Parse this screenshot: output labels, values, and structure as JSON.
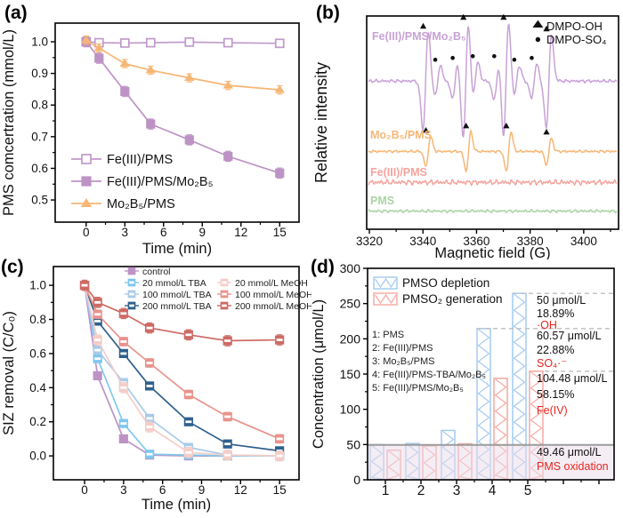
{
  "figure": {
    "panels": [
      {
        "letter": "(a)"
      },
      {
        "letter": "(b)"
      },
      {
        "letter": "(c)"
      },
      {
        "letter": "(d)"
      }
    ]
  },
  "chart_data": [
    {
      "id": "a",
      "type": "line",
      "title": "",
      "xlabel": "Time (min)",
      "ylabel": "PMS comcertration (mmol/L)",
      "x": [
        0,
        1,
        3,
        5,
        8,
        11,
        15
      ],
      "xticks": [
        0,
        3,
        6,
        9,
        12,
        15
      ],
      "yticks": [
        0.5,
        0.6,
        0.7,
        0.8,
        0.9,
        1.0
      ],
      "xlim": [
        -2.4,
        16.5
      ],
      "ylim": [
        0.43,
        1.059
      ],
      "legend_position": "lower-left",
      "series": [
        {
          "name": "Fe(III)/PMS",
          "color": "#c09aca",
          "marker": "square-open",
          "err": 0.012,
          "values": [
            1.0,
            0.997,
            0.996,
            0.997,
            0.999,
            0.997,
            0.995
          ]
        },
        {
          "name": "Fe(III)/PMS/Mo₂B₅",
          "color": "#bd93c5",
          "marker": "square-filled",
          "err": 0.016,
          "values": [
            1.0,
            0.948,
            0.843,
            0.74,
            0.69,
            0.638,
            0.585
          ]
        },
        {
          "name": "Mo₂B₅/PMS",
          "color": "#f6b675",
          "marker": "triangle-filled",
          "err": 0.013,
          "values": [
            1.005,
            0.98,
            0.931,
            0.91,
            0.886,
            0.862,
            0.848
          ]
        }
      ]
    },
    {
      "id": "b",
      "type": "epr",
      "title": "",
      "xlabel": "Magnetic field (G)",
      "ylabel": "Relative intensity",
      "xlim": [
        3319,
        3413
      ],
      "xticks": [
        3320,
        3340,
        3360,
        3380,
        3400
      ],
      "xminor": [
        3330,
        3350,
        3370,
        3390,
        3410
      ],
      "legend": [
        {
          "marker": "triangle",
          "label": "DMPO-OH"
        },
        {
          "marker": "dot",
          "label": "DMPO-SO₄"
        }
      ],
      "curves": [
        {
          "label": "Fe(III)/PMS/Mo₂B₅",
          "color": "#c8a2d6",
          "baseline_frac": 0.305,
          "noise": 1.7,
          "width": 1.0,
          "peaks": [
            [
              3341,
              55
            ],
            [
              3345.5,
              17
            ],
            [
              3352,
              19
            ],
            [
              3356,
              65
            ],
            [
              3359.5,
              21
            ],
            [
              3367.5,
              21
            ],
            [
              3371,
              65
            ],
            [
              3375,
              17
            ],
            [
              3381.5,
              19
            ],
            [
              3387,
              52
            ]
          ],
          "tri_markers": [
            3341,
            3356,
            3371,
            3387
          ],
          "dot_markers": [
            3345.5,
            3352,
            3359.5,
            3367.5,
            3375,
            3381.5
          ]
        },
        {
          "label": "Mo₂B₅/PMS",
          "color": "#f6b675",
          "baseline_frac": 0.635,
          "noise": 1.4,
          "width": 0.9,
          "peaks": [
            [
              3342,
              17
            ],
            [
              3357,
              22
            ],
            [
              3372,
              22
            ],
            [
              3387,
              15
            ]
          ],
          "tri_markers": [
            3342,
            3357,
            3372,
            3387
          ],
          "dot_markers": []
        },
        {
          "label": "Fe(III)/PMS",
          "color": "#f4a49e",
          "baseline_frac": 0.78,
          "noise": 2.8,
          "width": 1.2,
          "peaks": [],
          "tri_markers": [],
          "dot_markers": []
        },
        {
          "label": "PMS",
          "color": "#abd3a5",
          "baseline_frac": 0.915,
          "noise": 1.6,
          "width": 1.0,
          "peaks": [],
          "tri_markers": [],
          "dot_markers": []
        }
      ]
    },
    {
      "id": "c",
      "type": "line",
      "title": "",
      "xlabel": "Time (min)",
      "ylabel": "SIZ removal (C/C₀)",
      "x": [
        0,
        1,
        3,
        5,
        8,
        11,
        15
      ],
      "xticks": [
        0,
        3,
        6,
        9,
        12,
        15
      ],
      "yticks": [
        0.0,
        0.2,
        0.4,
        0.6,
        0.8,
        1.0
      ],
      "xlim": [
        -2.4,
        16.5
      ],
      "ylim": [
        -0.14,
        1.11
      ],
      "legend_position": "top",
      "legend_rows": [
        [
          0
        ],
        [
          1,
          4
        ],
        [
          2,
          5
        ],
        [
          3,
          6
        ]
      ],
      "series": [
        {
          "name": "control",
          "color": "#bd93c5",
          "marker": "square-filled",
          "err": 0.018,
          "values": [
            1.0,
            0.47,
            0.1,
            0.005,
            0.0,
            0.0,
            0.0
          ]
        },
        {
          "name": "20 mmol/L TBA",
          "color": "#7fc7ef",
          "marker": "square-half",
          "err": 0.02,
          "values": [
            1.0,
            0.57,
            0.19,
            0.01,
            0.005,
            0.0,
            0.0
          ]
        },
        {
          "name": "100 mmol/L TBA",
          "color": "#a8cbe9",
          "marker": "square-half",
          "err": 0.02,
          "values": [
            1.0,
            0.62,
            0.43,
            0.22,
            0.05,
            0.005,
            0.0
          ]
        },
        {
          "name": "200 mmol/L TBA",
          "color": "#2e608e",
          "marker": "square-half",
          "err": 0.022,
          "values": [
            1.0,
            0.79,
            0.6,
            0.41,
            0.2,
            0.07,
            0.03
          ]
        },
        {
          "name": "20 mmol/L MeOH",
          "color": "#f6cdc8",
          "marker": "square-half",
          "err": 0.03,
          "values": [
            1.0,
            0.68,
            0.4,
            0.17,
            0.02,
            0.005,
            0.0
          ]
        },
        {
          "name": "100 mmol/L MeOH",
          "color": "#e9938c",
          "marker": "square-half",
          "err": 0.025,
          "values": [
            1.0,
            0.83,
            0.67,
            0.545,
            0.36,
            0.23,
            0.1
          ]
        },
        {
          "name": "200 mmol/L MeOH",
          "color": "#ce6a63",
          "marker": "square-half",
          "err": 0.03,
          "values": [
            1.0,
            0.9,
            0.835,
            0.75,
            0.71,
            0.675,
            0.68
          ]
        }
      ]
    },
    {
      "id": "d",
      "type": "bar",
      "title": "",
      "xlabel": "",
      "ylabel": "Concentration (μmol/L)",
      "categories": [
        "1",
        "2",
        "3",
        "4",
        "5"
      ],
      "ylim": [
        0,
        300
      ],
      "yticks": [
        0,
        50,
        100,
        150,
        200,
        250,
        300
      ],
      "series": [
        {
          "name": "PMSO depletion",
          "color": "#a3cbf0",
          "values": [
            50,
            51.5,
            70,
            214.5,
            264.5
          ]
        },
        {
          "name": "PMSO₂ generation",
          "color": "#f4a8a1",
          "values": [
            42,
            48,
            51,
            144,
            154
          ]
        }
      ],
      "condition_list": [
        "1: PMS",
        "2: Fe(III)/PMS",
        "3: Mo₂B₅/PMS",
        "4: Fe(III)/PMS-TBA/Mo₂B₅",
        "5: Fe(III)/PMS/Mo₂B₅"
      ],
      "dashed_lines": [
        264.5,
        214.5,
        154
      ],
      "solid_line": 49.46,
      "band": [
        0,
        49.46
      ],
      "annotations": [
        {
          "value": "50 μmol/L",
          "percent": "18.89%",
          "species": "·OH"
        },
        {
          "value": "60.57 μmol/L",
          "percent": "22.88%",
          "species": "SO₄·⁻"
        },
        {
          "value": "104.48 μmol/L",
          "percent": "58.15%",
          "species": "Fe(IV)"
        },
        {
          "value": "49.46 μmol/L",
          "percent": "",
          "species": "PMS oxidation"
        }
      ],
      "accent_red": "#e8251d",
      "dashed_color": "#bdbdbd",
      "solid_color": "#9b9b9b",
      "band_color": "#ecdcea"
    }
  ]
}
